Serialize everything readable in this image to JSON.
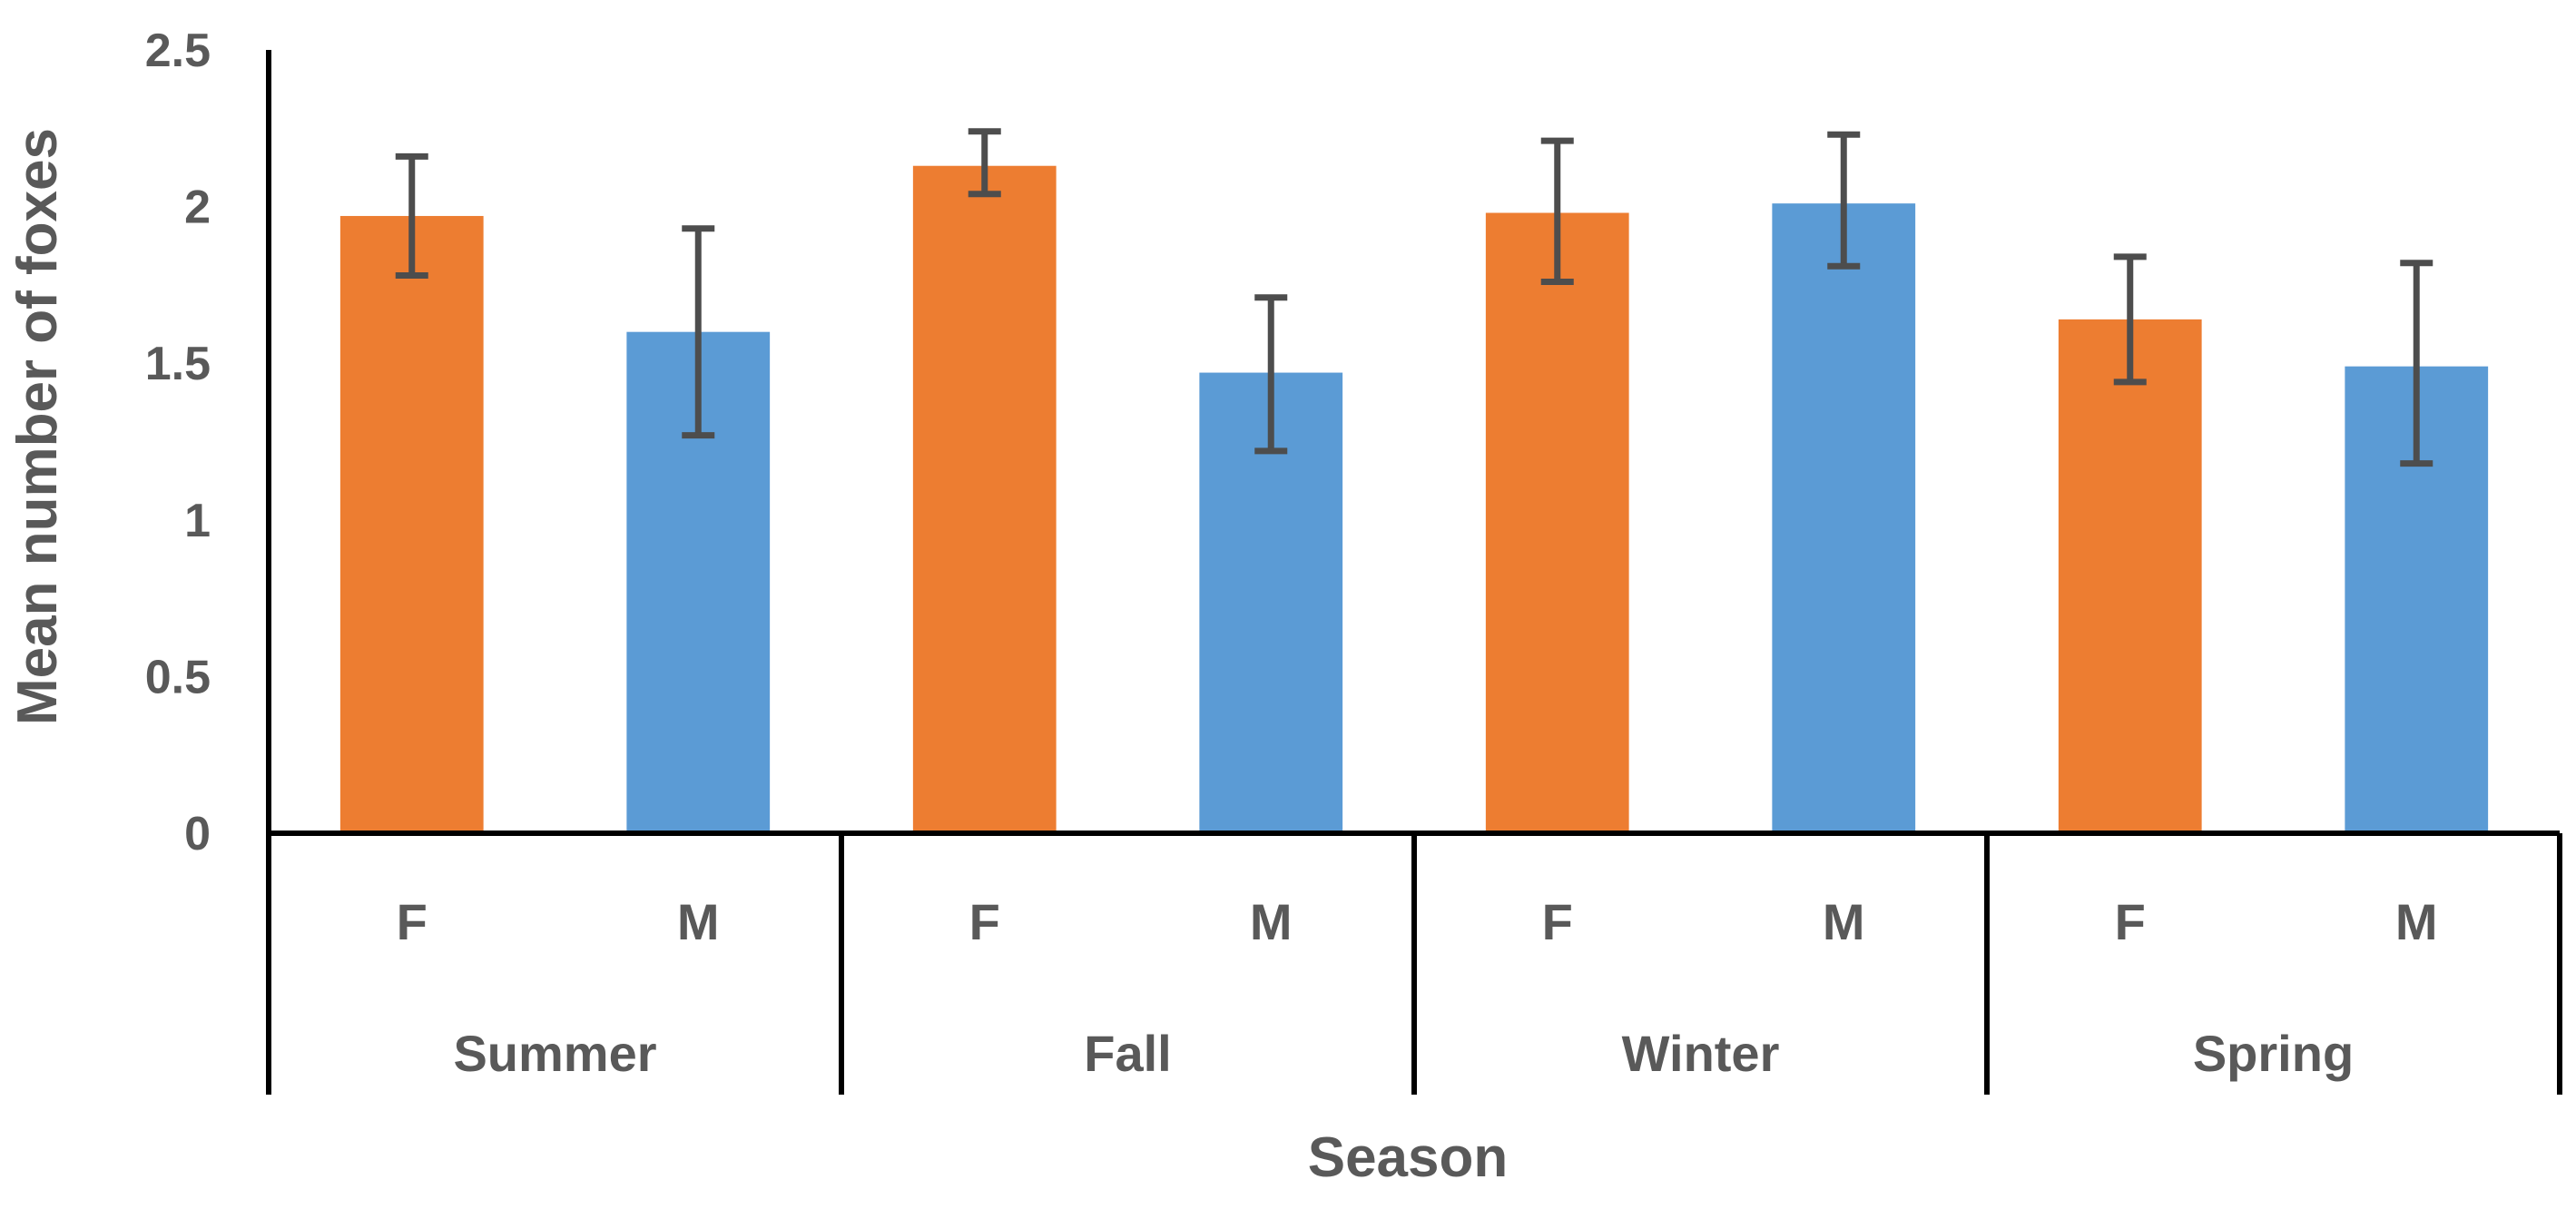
{
  "chart_data": {
    "type": "bar",
    "ylabel": "Mean number of foxes",
    "xlabel": "Season",
    "ylim": [
      0,
      2.5
    ],
    "yticks": [
      0,
      0.5,
      1,
      1.5,
      2,
      2.5
    ],
    "ytick_labels": [
      "0",
      "0.5",
      "1",
      "1.5",
      "2",
      "2.5"
    ],
    "grid": false,
    "legend": "none",
    "groups": [
      "Summer",
      "Fall",
      "Winter",
      "Spring"
    ],
    "subcategories": [
      "F",
      "M"
    ],
    "colors": {
      "F": "#ED7D31",
      "M": "#5B9BD5",
      "error_bar": "#4D4D4D",
      "axis": "#000000"
    },
    "bars": [
      {
        "group": "Summer",
        "sex": "F",
        "value": 1.97,
        "err_low": 1.78,
        "err_high": 2.16
      },
      {
        "group": "Summer",
        "sex": "M",
        "value": 1.6,
        "err_low": 1.27,
        "err_high": 1.93
      },
      {
        "group": "Fall",
        "sex": "F",
        "value": 2.13,
        "err_low": 2.04,
        "err_high": 2.24
      },
      {
        "group": "Fall",
        "sex": "M",
        "value": 1.47,
        "err_low": 1.22,
        "err_high": 1.71
      },
      {
        "group": "Winter",
        "sex": "F",
        "value": 1.98,
        "err_low": 1.76,
        "err_high": 2.21
      },
      {
        "group": "Winter",
        "sex": "M",
        "value": 2.01,
        "err_low": 1.81,
        "err_high": 2.23
      },
      {
        "group": "Spring",
        "sex": "F",
        "value": 1.64,
        "err_low": 1.44,
        "err_high": 1.84
      },
      {
        "group": "Spring",
        "sex": "M",
        "value": 1.49,
        "err_low": 1.18,
        "err_high": 1.82
      }
    ]
  }
}
